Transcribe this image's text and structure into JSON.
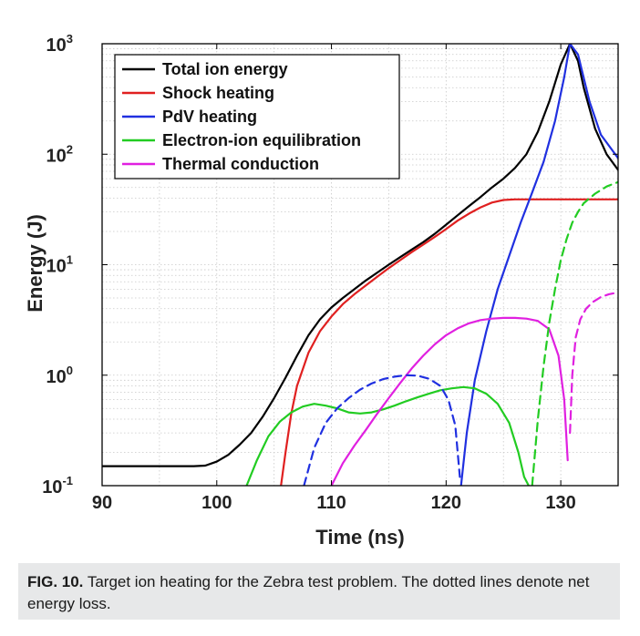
{
  "chart_data": {
    "type": "line",
    "xlabel": "Time (ns)",
    "ylabel": "Energy (J)",
    "xlim": [
      90,
      135
    ],
    "ylim": [
      0.1,
      1000
    ],
    "yscale": "log",
    "xticks": [
      "90",
      "100",
      "110",
      "120",
      "130"
    ],
    "yticks": [
      {
        "base": "10",
        "exp": "-1"
      },
      {
        "base": "10",
        "exp": "0"
      },
      {
        "base": "10",
        "exp": "1"
      },
      {
        "base": "10",
        "exp": "2"
      },
      {
        "base": "10",
        "exp": "3"
      }
    ],
    "grid": true,
    "legend_position": "top-left",
    "series": [
      {
        "name": "Total ion energy",
        "color": "#000000",
        "dash": false,
        "points": [
          [
            90,
            0.15
          ],
          [
            98,
            0.15
          ],
          [
            99,
            0.152
          ],
          [
            100,
            0.165
          ],
          [
            101,
            0.19
          ],
          [
            102,
            0.235
          ],
          [
            103,
            0.3
          ],
          [
            104,
            0.42
          ],
          [
            105,
            0.62
          ],
          [
            106,
            0.95
          ],
          [
            107,
            1.5
          ],
          [
            108,
            2.3
          ],
          [
            109,
            3.2
          ],
          [
            110,
            4.1
          ],
          [
            111,
            5.0
          ],
          [
            112,
            6.0
          ],
          [
            113,
            7.2
          ],
          [
            114,
            8.5
          ],
          [
            115,
            10
          ],
          [
            116,
            11.7
          ],
          [
            117,
            13.7
          ],
          [
            118,
            16
          ],
          [
            119,
            19
          ],
          [
            120,
            23
          ],
          [
            121,
            28
          ],
          [
            122,
            34
          ],
          [
            123,
            41
          ],
          [
            124,
            50
          ],
          [
            125,
            60
          ],
          [
            126,
            75
          ],
          [
            127,
            100
          ],
          [
            128,
            160
          ],
          [
            129,
            300
          ],
          [
            130,
            650
          ],
          [
            130.8,
            1000
          ],
          [
            131.5,
            700
          ],
          [
            132,
            400
          ],
          [
            133,
            170
          ],
          [
            134,
            100
          ],
          [
            135,
            72
          ]
        ]
      },
      {
        "name": "Shock heating",
        "color": "#e02020",
        "dash": false,
        "points": [
          [
            105.6,
            0.1
          ],
          [
            106,
            0.2
          ],
          [
            106.5,
            0.45
          ],
          [
            107,
            0.8
          ],
          [
            108,
            1.6
          ],
          [
            109,
            2.5
          ],
          [
            110,
            3.4
          ],
          [
            111,
            4.4
          ],
          [
            112,
            5.4
          ],
          [
            113,
            6.5
          ],
          [
            114,
            7.8
          ],
          [
            115,
            9.3
          ],
          [
            116,
            11
          ],
          [
            117,
            13
          ],
          [
            118,
            15.2
          ],
          [
            119,
            17.8
          ],
          [
            120,
            21
          ],
          [
            121,
            25
          ],
          [
            122,
            29
          ],
          [
            123,
            33
          ],
          [
            124,
            36.5
          ],
          [
            125,
            38.5
          ],
          [
            126,
            39
          ],
          [
            135,
            39
          ]
        ]
      },
      {
        "name": "PdV heating",
        "color": "#2030e0",
        "dash": false,
        "points": [
          [
            121.3,
            0.1
          ],
          [
            121.8,
            0.3
          ],
          [
            122.5,
            0.9
          ],
          [
            123.5,
            2.5
          ],
          [
            124.5,
            6
          ],
          [
            125.5,
            12
          ],
          [
            126.5,
            24
          ],
          [
            127.5,
            45
          ],
          [
            128.5,
            85
          ],
          [
            129.5,
            200
          ],
          [
            130.3,
            500
          ],
          [
            130.8,
            1000
          ],
          [
            131.5,
            800
          ],
          [
            132.5,
            300
          ],
          [
            133.5,
            150
          ],
          [
            135,
            92
          ]
        ]
      },
      {
        "name": "Electron-ion equilibration",
        "color": "#22cc22",
        "dash": false,
        "points": [
          [
            102.6,
            0.1
          ],
          [
            103.5,
            0.17
          ],
          [
            104.5,
            0.28
          ],
          [
            105.5,
            0.38
          ],
          [
            106.5,
            0.46
          ],
          [
            107.5,
            0.52
          ],
          [
            108.5,
            0.55
          ],
          [
            109.5,
            0.53
          ],
          [
            110.5,
            0.5
          ],
          [
            111.5,
            0.46
          ],
          [
            112.5,
            0.45
          ],
          [
            113.5,
            0.46
          ],
          [
            114.5,
            0.49
          ],
          [
            115.5,
            0.53
          ],
          [
            116.5,
            0.58
          ],
          [
            117.5,
            0.63
          ],
          [
            118.5,
            0.68
          ],
          [
            119.5,
            0.73
          ],
          [
            120.5,
            0.76
          ],
          [
            121.5,
            0.78
          ],
          [
            122.5,
            0.76
          ],
          [
            123.5,
            0.68
          ],
          [
            124.5,
            0.55
          ],
          [
            125.5,
            0.37
          ],
          [
            126.3,
            0.2
          ],
          [
            126.8,
            0.12
          ],
          [
            127.2,
            0.1
          ]
        ]
      },
      {
        "name": "Thermal conduction",
        "color": "#e020e0",
        "dash": false,
        "points": [
          [
            110,
            0.1
          ],
          [
            111,
            0.16
          ],
          [
            112,
            0.23
          ],
          [
            113,
            0.32
          ],
          [
            114,
            0.45
          ],
          [
            115,
            0.62
          ],
          [
            116,
            0.85
          ],
          [
            117,
            1.15
          ],
          [
            118,
            1.5
          ],
          [
            119,
            1.9
          ],
          [
            120,
            2.3
          ],
          [
            121,
            2.65
          ],
          [
            122,
            2.95
          ],
          [
            123,
            3.15
          ],
          [
            124,
            3.25
          ],
          [
            125,
            3.3
          ],
          [
            126,
            3.3
          ],
          [
            127,
            3.25
          ],
          [
            128,
            3.1
          ],
          [
            129,
            2.6
          ],
          [
            129.8,
            1.5
          ],
          [
            130.3,
            0.6
          ],
          [
            130.6,
            0.17
          ]
        ]
      },
      {
        "color": "#2030e0",
        "dash": true,
        "points": [
          [
            107.6,
            0.1
          ],
          [
            108.5,
            0.22
          ],
          [
            109.5,
            0.37
          ],
          [
            110.5,
            0.5
          ],
          [
            111.5,
            0.62
          ],
          [
            112.5,
            0.74
          ],
          [
            113.5,
            0.84
          ],
          [
            114.5,
            0.92
          ],
          [
            115.5,
            0.97
          ],
          [
            116.5,
            1.0
          ],
          [
            117.5,
            0.99
          ],
          [
            118.5,
            0.93
          ],
          [
            119.5,
            0.8
          ],
          [
            120.2,
            0.6
          ],
          [
            120.8,
            0.35
          ],
          [
            121.2,
            0.12
          ]
        ]
      },
      {
        "color": "#22cc22",
        "dash": true,
        "points": [
          [
            127.5,
            0.1
          ],
          [
            128,
            0.4
          ],
          [
            128.5,
            1.2
          ],
          [
            129,
            3
          ],
          [
            129.5,
            6
          ],
          [
            130,
            11
          ],
          [
            130.5,
            17
          ],
          [
            131,
            24
          ],
          [
            131.5,
            30
          ],
          [
            132,
            36
          ],
          [
            133,
            44
          ],
          [
            134,
            51
          ],
          [
            135,
            56
          ]
        ]
      },
      {
        "color": "#e020e0",
        "dash": true,
        "points": [
          [
            130.8,
            0.3
          ],
          [
            131,
            1.0
          ],
          [
            131.3,
            2.2
          ],
          [
            131.7,
            3.2
          ],
          [
            132.2,
            4.0
          ],
          [
            132.8,
            4.6
          ],
          [
            133.5,
            5.1
          ],
          [
            134.2,
            5.4
          ],
          [
            135,
            5.6
          ]
        ]
      }
    ]
  },
  "caption": {
    "label": "FIG. 10.",
    "text": " Target ion heating for the Zebra test problem. The dotted lines denote net energy loss."
  }
}
